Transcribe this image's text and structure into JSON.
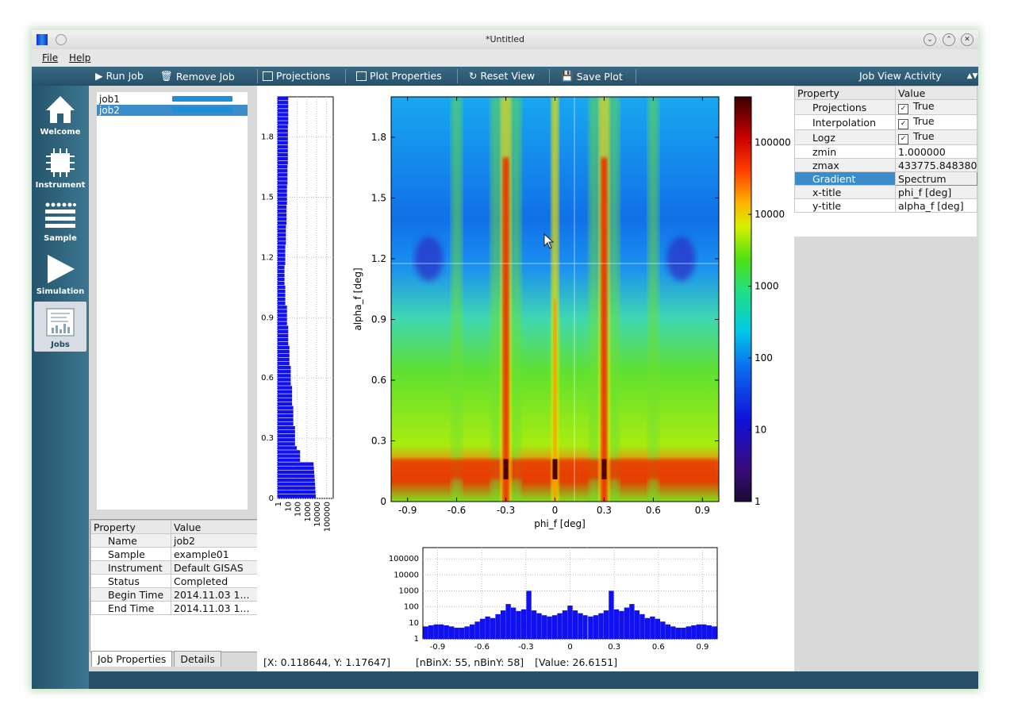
{
  "window": {
    "title": "*Untitled"
  },
  "menu": [
    "File",
    "Help"
  ],
  "toolbar": {
    "run_job": "Run Job",
    "remove_job": "Remove Job",
    "projections": "Projections",
    "plot_properties": "Plot Properties",
    "reset_view": "Reset View",
    "save_plot": "Save Plot",
    "activity": "Job View Activity"
  },
  "sidebar": {
    "items": [
      {
        "label": "Welcome",
        "icon": "home-icon"
      },
      {
        "label": "Instrument",
        "icon": "chip-icon"
      },
      {
        "label": "Sample",
        "icon": "layers-icon"
      },
      {
        "label": "Simulation",
        "icon": "play-icon"
      },
      {
        "label": "Jobs",
        "icon": "chart-icon",
        "active": true
      }
    ]
  },
  "jobs": [
    {
      "name": "job1",
      "progress": 1.0
    },
    {
      "name": "job2",
      "progress": 1.0,
      "selected": true
    }
  ],
  "job_properties": {
    "headers": [
      "Property",
      "Value"
    ],
    "rows": [
      [
        "Name",
        "job2"
      ],
      [
        "Sample",
        "example01"
      ],
      [
        "Instrument",
        "Default GISAS"
      ],
      [
        "Status",
        "Completed"
      ],
      [
        "Begin Time",
        "2014.11.03 1..."
      ],
      [
        "End Time",
        "2014.11.03 1..."
      ]
    ],
    "tabs": [
      "Job Properties",
      "Details"
    ]
  },
  "plot_properties": {
    "headers": [
      "Property",
      "Value"
    ],
    "rows": [
      {
        "name": "Projections",
        "value": "True",
        "checkbox": true
      },
      {
        "name": "Interpolation",
        "value": "True",
        "checkbox": true
      },
      {
        "name": "Logz",
        "value": "True",
        "checkbox": true
      },
      {
        "name": "zmin",
        "value": "1.000000"
      },
      {
        "name": "zmax",
        "value": "433775.848380"
      },
      {
        "name": "Gradient",
        "value": "Spectrum",
        "selected": true
      },
      {
        "name": "x-title",
        "value": "phi_f [deg]"
      },
      {
        "name": "y-title",
        "value": "alpha_f [deg]"
      }
    ]
  },
  "status": {
    "coords": "[X: 0.118644, Y: 1.17647]",
    "bins": "[nBinX: 55, nBinY: 58]",
    "value": "[Value: 26.6151]"
  },
  "chart_data": [
    {
      "type": "heatmap",
      "xlabel": "phi_f [deg]",
      "ylabel": "alpha_f [deg]",
      "xlim": [
        -1.0,
        1.0
      ],
      "ylim": [
        0,
        2.0
      ],
      "xticks": [
        "-0.9",
        "-0.6",
        "-0.3",
        "0",
        "0.3",
        "0.6",
        "0.9"
      ],
      "yticks": [
        "0",
        "0.3",
        "0.6",
        "0.9",
        "1.2",
        "1.5",
        "1.8"
      ],
      "colorbar": {
        "scale": "log",
        "ticks": [
          "1",
          "10",
          "100",
          "1000",
          "10000",
          "100000"
        ],
        "zmin": 1.0,
        "zmax": 433775.84838
      },
      "crosshair": {
        "x": 0.118644,
        "y": 1.17647
      },
      "peaks_x": [
        -0.3,
        0,
        0.3
      ],
      "yoneda_band": [
        0.11,
        0.21
      ],
      "grid": false
    },
    {
      "type": "bar",
      "orientation": "horizontal",
      "yticks": [
        "0",
        "0.3",
        "0.6",
        "0.9",
        "1.2",
        "1.5",
        "1.8"
      ],
      "xticks": [
        "1",
        "10",
        "100",
        "1000",
        "10000",
        "100000"
      ],
      "xscale": "log",
      "y": [
        0.05,
        0.15,
        0.25,
        0.35,
        0.45,
        0.55,
        0.65,
        0.75,
        0.85,
        0.95,
        1.05,
        1.15,
        1.25,
        1.35,
        1.45,
        1.55,
        1.65,
        1.75,
        1.85,
        1.95
      ],
      "values": [
        9000,
        40000,
        90,
        60,
        40,
        30,
        22,
        16,
        12,
        9,
        6,
        5,
        6,
        7,
        8,
        9,
        10,
        11,
        11,
        12
      ],
      "grid": true
    },
    {
      "type": "bar",
      "yscale": "log",
      "yticks": [
        "1",
        "10",
        "100",
        "1000",
        "10000",
        "100000"
      ],
      "xticks": [
        "-0.9",
        "-0.6",
        "-0.3",
        "0",
        "0.3",
        "0.6",
        "0.9"
      ],
      "x": [
        -0.98,
        -0.945,
        -0.91,
        -0.875,
        -0.84,
        -0.805,
        -0.77,
        -0.735,
        -0.7,
        -0.665,
        -0.63,
        -0.595,
        -0.56,
        -0.525,
        -0.49,
        -0.455,
        -0.42,
        -0.385,
        -0.35,
        -0.315,
        -0.28,
        -0.245,
        -0.21,
        -0.175,
        -0.14,
        -0.105,
        -0.07,
        -0.035,
        0,
        0.035,
        0.07,
        0.105,
        0.14,
        0.175,
        0.21,
        0.245,
        0.28,
        0.315,
        0.35,
        0.385,
        0.42,
        0.455,
        0.49,
        0.525,
        0.56,
        0.595,
        0.63,
        0.665,
        0.7,
        0.735,
        0.77,
        0.805,
        0.84,
        0.875,
        0.91,
        0.945,
        0.98
      ],
      "values": [
        6,
        7,
        8,
        8,
        7,
        6,
        5,
        5,
        6,
        8,
        12,
        18,
        25,
        20,
        35,
        60,
        150,
        90,
        55,
        70,
        1000,
        60,
        40,
        30,
        25,
        30,
        40,
        60,
        120,
        60,
        40,
        30,
        25,
        30,
        40,
        60,
        1000,
        70,
        55,
        90,
        150,
        60,
        35,
        20,
        25,
        18,
        12,
        8,
        6,
        5,
        5,
        6,
        7,
        8,
        8,
        7,
        6
      ],
      "grid": true
    }
  ]
}
